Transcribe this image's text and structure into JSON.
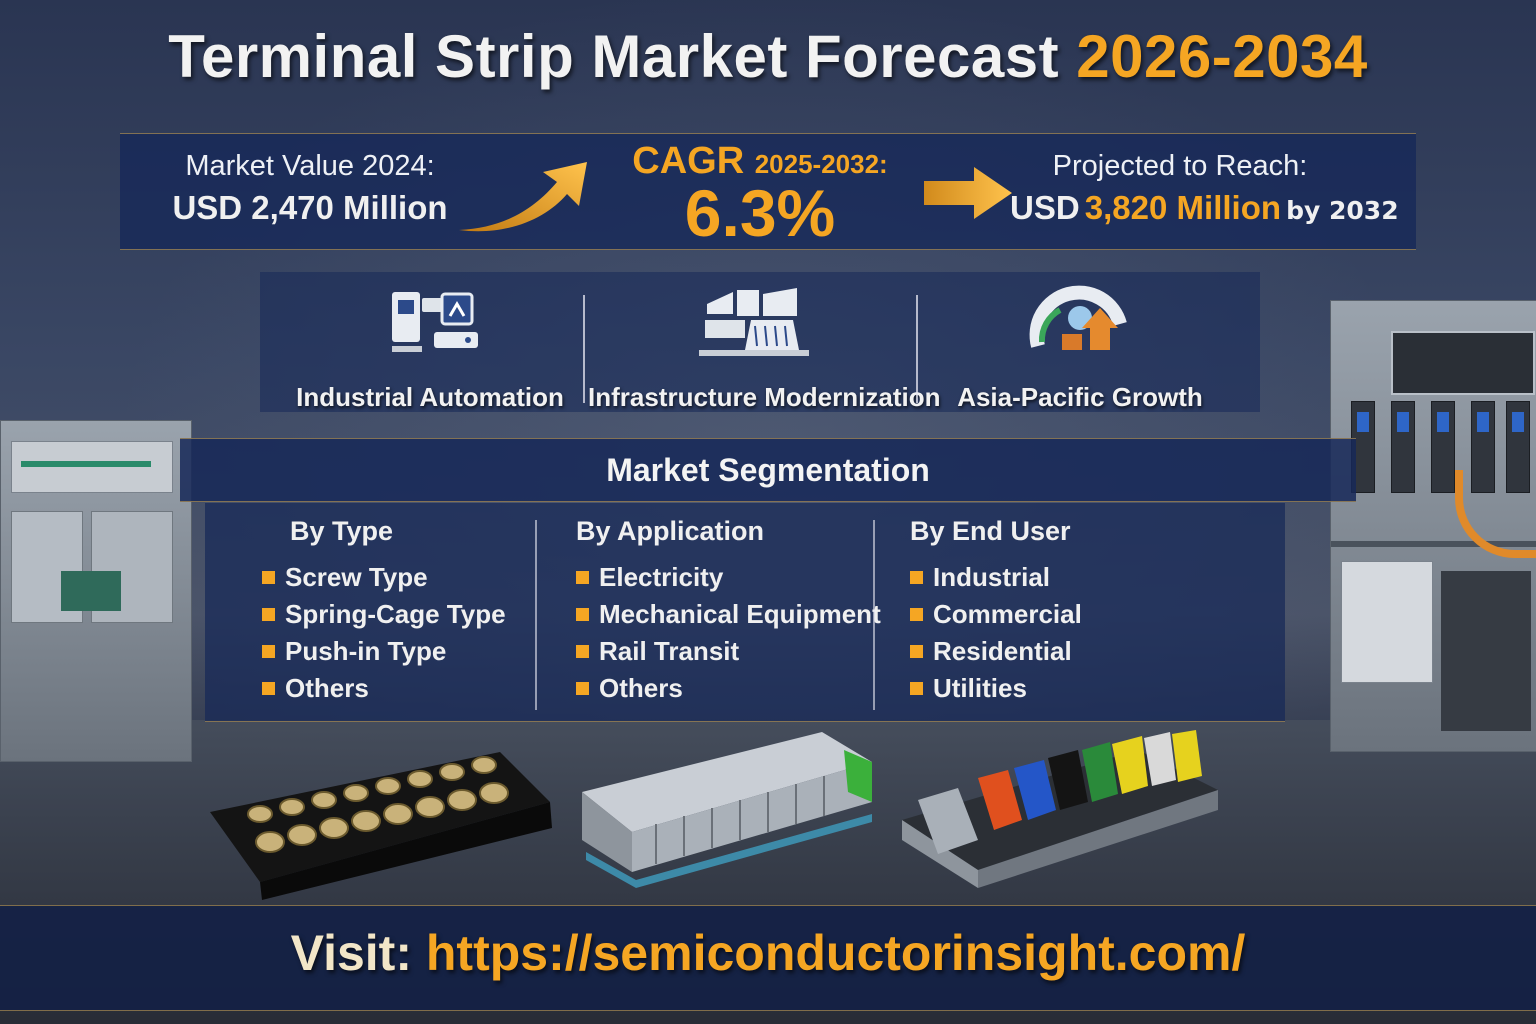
{
  "title": {
    "main": "Terminal Strip Market Forecast",
    "years": "2026-2034"
  },
  "stats": {
    "market_value": {
      "label": "Market Value 2024:",
      "value": "USD 2,470 Million"
    },
    "cagr": {
      "label": "CAGR",
      "period": "2025-2032:",
      "value": "6.3%"
    },
    "projected": {
      "label": "Projected to Reach:",
      "prefix": "USD",
      "value": "3,820 Million",
      "suffix": "by 2032"
    }
  },
  "drivers": [
    {
      "label": "Industrial Automation",
      "icon": "industrial-automation-icon"
    },
    {
      "label": "Infrastructure Modernization",
      "icon": "infrastructure-icon"
    },
    {
      "label": "Asia-Pacific Growth",
      "icon": "asia-pacific-growth-icon"
    }
  ],
  "segmentation": {
    "title": "Market Segmentation",
    "columns": [
      {
        "heading": "By Type",
        "items": [
          "Screw Type",
          "Spring-Cage Type",
          "Push-in Type",
          "Others"
        ]
      },
      {
        "heading": "By Application",
        "items": [
          "Electricity",
          "Mechanical Equipment",
          "Rail Transit",
          "Others"
        ]
      },
      {
        "heading": "By End User",
        "items": [
          "Industrial",
          "Commercial",
          "Residential",
          "Utilities"
        ]
      }
    ]
  },
  "footer": {
    "visit_label": "Visit:",
    "url": "https://semiconductorinsight.com/"
  },
  "colors": {
    "accent": "#f5a623",
    "panel": "#162858"
  }
}
